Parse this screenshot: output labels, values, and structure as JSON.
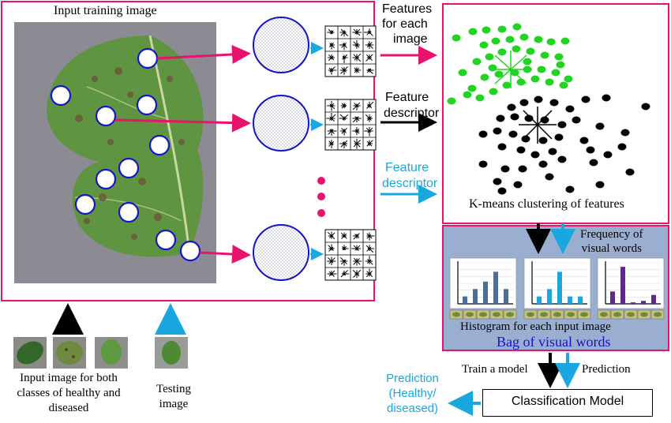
{
  "colors": {
    "magenta": "#e8136f",
    "cyan": "#1aa7e0",
    "black": "#000000",
    "blue": "#1414c8",
    "green": "#22d422",
    "hist_bg": "#9aaed0",
    "leaf_green": "#6b9a4a",
    "photo_bg": "#8c8a90"
  },
  "labels": {
    "input_training_image": "Input training image",
    "features_for_each_image": [
      "Features",
      "for each",
      "image"
    ],
    "feature_descriptor_black": [
      "Feature",
      "descriptor"
    ],
    "feature_descriptor_cyan": [
      "Feature",
      "descriptor"
    ],
    "kmeans_caption": "K-means clustering of features",
    "frequency_of_visual_words": [
      "Frequency of",
      "visual words"
    ],
    "histogram_caption": "Histogram for each input image",
    "bag_of_visual_words": "Bag of visual words",
    "train_a_model": "Train a model",
    "prediction_arrow_label": "Prediction",
    "prediction_output": [
      "Prediction",
      "(Healthy/",
      "diseased)"
    ],
    "classification_model": "Classification Model",
    "input_image_caption": [
      "Input image for both",
      "classes of healthy and",
      "diseased"
    ],
    "testing_image_caption": [
      "Testing",
      "image"
    ]
  },
  "icons": {
    "arrow": "arrow-icon",
    "feature_patch": "circle-patch-icon",
    "descriptor_grid": "sift-grid-icon"
  },
  "histograms": [
    {
      "color": "#4a6f94",
      "values": [
        1.5,
        3,
        4.5,
        6.5,
        3
      ]
    },
    {
      "color": "#1aa7e0",
      "values": [
        1.5,
        3,
        6.5,
        1.5,
        1.5
      ]
    },
    {
      "color": "#5b2a8c",
      "values": [
        2.5,
        7.5,
        0.3,
        0.6,
        1.8
      ]
    }
  ]
}
